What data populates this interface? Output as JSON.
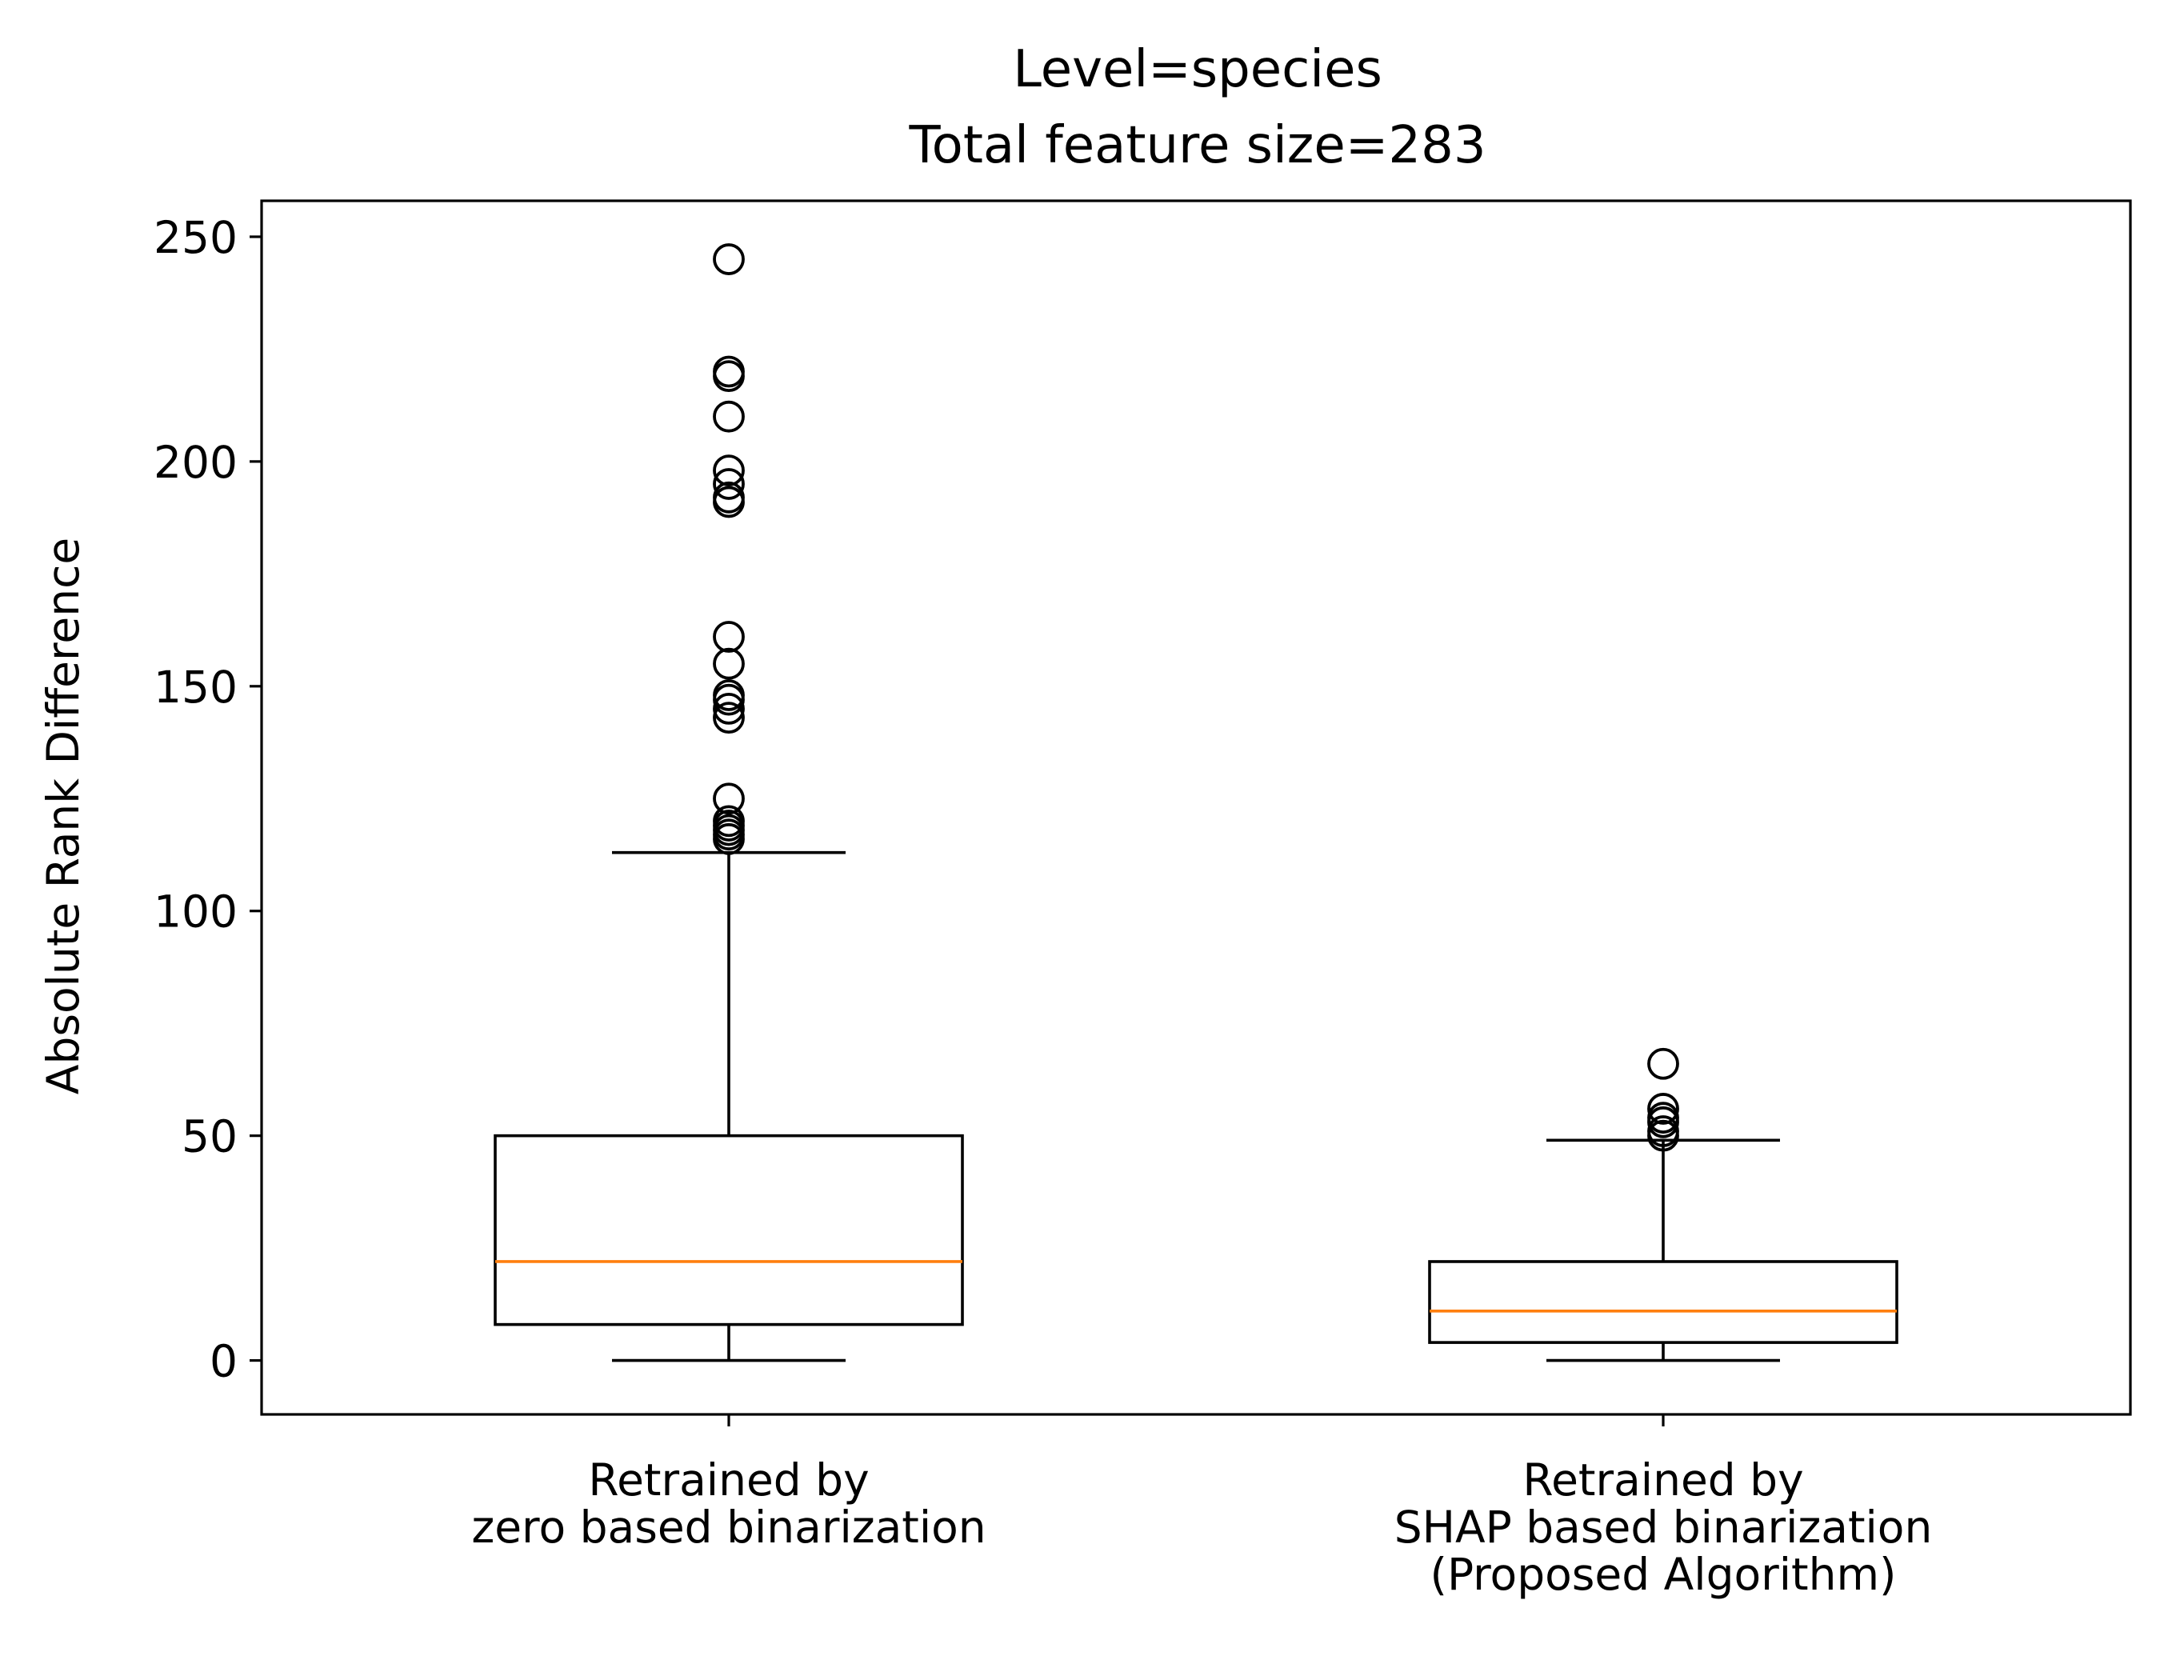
{
  "chart_data": {
    "type": "box",
    "title": [
      "Level=species",
      "Total feature size=283"
    ],
    "xlabel": "",
    "ylabel": "Absolute Rank Difference",
    "ylim": [
      -12,
      258
    ],
    "yticks": [
      0,
      50,
      100,
      150,
      200,
      250
    ],
    "ytick_labels": [
      "0",
      "50",
      "100",
      "150",
      "200",
      "250"
    ],
    "grid": false,
    "colors": {
      "box": "#000000",
      "median": "#ff7f0e",
      "outlier": "#000000"
    },
    "series": [
      {
        "label_lines": [
          "Retrained by",
          "zero based binarization"
        ],
        "whisker_low": 0,
        "q1": 8,
        "median": 22,
        "q3": 50,
        "whisker_high": 113,
        "outliers": [
          116,
          117,
          118,
          119,
          120,
          125,
          143,
          145,
          147,
          148,
          155,
          161,
          191,
          192,
          195,
          198,
          210,
          219,
          220,
          245
        ]
      },
      {
        "label_lines": [
          "Retrained by",
          "SHAP based binarization",
          "(Proposed Algorithm)"
        ],
        "whisker_low": 0,
        "q1": 4,
        "median": 11,
        "q3": 22,
        "whisker_high": 49,
        "outliers": [
          50,
          51,
          53,
          54,
          56,
          66
        ]
      }
    ]
  }
}
